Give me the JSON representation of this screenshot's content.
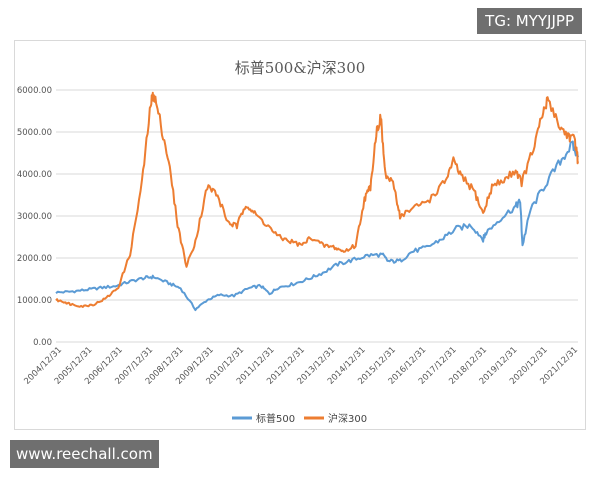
{
  "watermark_tg": "TG: MYYJJPP",
  "watermark_site": "www.reechall.com",
  "chart_data": {
    "type": "line",
    "title": "标普500&沪深300",
    "xlabel": "",
    "ylabel": "",
    "ylim": [
      0,
      6000
    ],
    "y_ticks": [
      "0.00",
      "1000.00",
      "2000.00",
      "3000.00",
      "4000.00",
      "5000.00",
      "6000.00"
    ],
    "x_ticks": [
      "2004/12/31",
      "2005/12/31",
      "2006/12/31",
      "2007/12/31",
      "2008/12/31",
      "2009/12/31",
      "2010/12/31",
      "2011/12/31",
      "2012/12/31",
      "2013/12/31",
      "2014/12/31",
      "2015/12/31",
      "2016/12/31",
      "2017/12/31",
      "2018/12/31",
      "2019/12/31",
      "2020/12/31",
      "2021/12/31"
    ],
    "grid": "horizontal",
    "legend_position": "bottom",
    "series": [
      {
        "name": "标普500",
        "color": "#5b9bd5",
        "x": [
          2004.5,
          2005.0,
          2005.5,
          2006.0,
          2006.5,
          2007.0,
          2007.5,
          2007.8,
          2008.3,
          2008.7,
          2009.2,
          2009.6,
          2010.0,
          2010.5,
          2011.0,
          2011.4,
          2011.7,
          2012.0,
          2012.5,
          2013.0,
          2013.5,
          2014.0,
          2014.5,
          2015.0,
          2015.5,
          2015.7,
          2016.1,
          2016.5,
          2017.0,
          2017.5,
          2018.0,
          2018.5,
          2018.9,
          2019.0,
          2019.5,
          2020.0,
          2020.15,
          2020.23,
          2020.5,
          2021.0,
          2021.5,
          2021.9,
          2022.1
        ],
        "y": [
          1180,
          1200,
          1240,
          1290,
          1330,
          1440,
          1530,
          1550,
          1400,
          1280,
          780,
          1000,
          1120,
          1100,
          1280,
          1340,
          1150,
          1300,
          1380,
          1500,
          1650,
          1850,
          1950,
          2060,
          2080,
          1920,
          1930,
          2150,
          2250,
          2450,
          2700,
          2780,
          2450,
          2600,
          2950,
          3230,
          3350,
          2300,
          3150,
          3750,
          4300,
          4700,
          4400
        ]
      },
      {
        "name": "沪深300",
        "color": "#ed7d31",
        "x": [
          2004.5,
          2004.8,
          2005.0,
          2005.4,
          2005.8,
          2006.2,
          2006.6,
          2007.0,
          2007.4,
          2007.7,
          2007.8,
          2008.0,
          2008.3,
          2008.6,
          2008.9,
          2009.2,
          2009.6,
          2009.9,
          2010.3,
          2010.6,
          2010.9,
          2011.2,
          2011.6,
          2012.0,
          2012.4,
          2012.8,
          2013.1,
          2013.5,
          2013.9,
          2014.2,
          2014.6,
          2014.9,
          2015.1,
          2015.3,
          2015.45,
          2015.6,
          2015.9,
          2016.1,
          2016.6,
          2017.1,
          2017.6,
          2017.9,
          2018.2,
          2018.6,
          2018.9,
          2019.2,
          2019.6,
          2020.0,
          2020.2,
          2020.6,
          2020.9,
          2021.1,
          2021.5,
          2021.8,
          2022.0,
          2022.1
        ],
        "y": [
          1000,
          950,
          900,
          850,
          900,
          1050,
          1300,
          2100,
          3800,
          5700,
          5900,
          5300,
          4300,
          2800,
          1800,
          2400,
          3700,
          3550,
          2850,
          2750,
          3300,
          3050,
          2800,
          2500,
          2400,
          2300,
          2500,
          2300,
          2250,
          2150,
          2300,
          3400,
          3700,
          5000,
          5350,
          4000,
          3700,
          3000,
          3200,
          3400,
          3800,
          4300,
          3900,
          3600,
          3050,
          3700,
          3850,
          4100,
          3800,
          4600,
          5400,
          5800,
          5100,
          4900,
          4800,
          4300
        ]
      }
    ]
  }
}
